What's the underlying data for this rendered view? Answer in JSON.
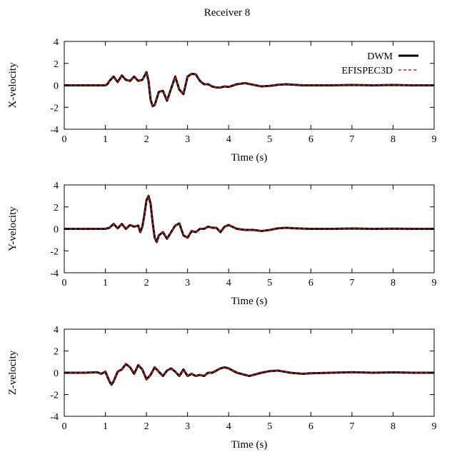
{
  "figure_title": "Receiver 8",
  "chart_data": [
    {
      "type": "line",
      "title": "",
      "xlabel": "Time (s)",
      "ylabel": "X-velocity",
      "xlim": [
        0,
        9
      ],
      "ylim": [
        -4,
        4
      ],
      "xticks": [
        0,
        1,
        2,
        3,
        4,
        5,
        6,
        7,
        8,
        9
      ],
      "yticks": [
        -4,
        -2,
        0,
        2,
        4
      ],
      "grid": false,
      "legend": "top-right",
      "x": [
        0,
        0.5,
        1.0,
        1.05,
        1.1,
        1.2,
        1.3,
        1.4,
        1.5,
        1.6,
        1.7,
        1.8,
        1.9,
        2.0,
        2.05,
        2.1,
        2.15,
        2.2,
        2.3,
        2.4,
        2.5,
        2.6,
        2.7,
        2.8,
        2.9,
        3.0,
        3.1,
        3.2,
        3.3,
        3.4,
        3.5,
        3.6,
        3.7,
        3.8,
        3.9,
        4.0,
        4.2,
        4.4,
        4.6,
        4.8,
        5.0,
        5.2,
        5.4,
        5.6,
        5.8,
        6.0,
        6.5,
        7.0,
        7.5,
        8.0,
        8.5,
        9.0
      ],
      "series": [
        {
          "name": "DWM",
          "color": "#000000",
          "style": "solid",
          "values": [
            0,
            0,
            0,
            0.1,
            0.4,
            0.8,
            0.3,
            0.9,
            0.5,
            0.4,
            0.8,
            0.4,
            0.5,
            1.2,
            0.4,
            -1.3,
            -1.9,
            -1.8,
            -0.6,
            -0.5,
            -1.4,
            -0.3,
            0.8,
            -0.4,
            -0.8,
            0.8,
            1.05,
            1.0,
            0.4,
            0.1,
            0.1,
            -0.1,
            -0.2,
            -0.2,
            -0.1,
            -0.15,
            0.1,
            0.2,
            0.05,
            -0.1,
            -0.05,
            0.05,
            0.1,
            0.05,
            0,
            0,
            0,
            0.03,
            0,
            0.03,
            0,
            0
          ]
        },
        {
          "name": "EFISPEC3D",
          "color": "#e8191a",
          "style": "dashed",
          "values": [
            0,
            0,
            0,
            0.1,
            0.4,
            0.8,
            0.3,
            0.9,
            0.5,
            0.4,
            0.8,
            0.4,
            0.5,
            1.2,
            0.4,
            -1.3,
            -1.9,
            -1.8,
            -0.6,
            -0.5,
            -1.4,
            -0.3,
            0.8,
            -0.4,
            -0.8,
            0.8,
            1.05,
            1.0,
            0.4,
            0.1,
            0.1,
            -0.1,
            -0.2,
            -0.2,
            -0.1,
            -0.15,
            0.1,
            0.2,
            0.05,
            -0.1,
            -0.05,
            0.05,
            0.1,
            0.05,
            0,
            0,
            0,
            0.03,
            0,
            0.03,
            0,
            0
          ]
        }
      ]
    },
    {
      "type": "line",
      "title": "",
      "xlabel": "Time (s)",
      "ylabel": "Y-velocity",
      "xlim": [
        0,
        9
      ],
      "ylim": [
        -4,
        4
      ],
      "xticks": [
        0,
        1,
        2,
        3,
        4,
        5,
        6,
        7,
        8,
        9
      ],
      "yticks": [
        -4,
        -2,
        0,
        2,
        4
      ],
      "grid": false,
      "x": [
        0,
        0.5,
        1.0,
        1.1,
        1.2,
        1.3,
        1.4,
        1.5,
        1.6,
        1.7,
        1.8,
        1.85,
        1.9,
        1.95,
        2.0,
        2.05,
        2.1,
        2.15,
        2.2,
        2.25,
        2.3,
        2.4,
        2.5,
        2.6,
        2.7,
        2.8,
        2.9,
        3.0,
        3.1,
        3.2,
        3.3,
        3.4,
        3.5,
        3.6,
        3.7,
        3.8,
        3.9,
        4.0,
        4.2,
        4.4,
        4.6,
        4.8,
        5.0,
        5.2,
        5.4,
        5.6,
        6.0,
        6.5,
        7.0,
        7.5,
        8.0,
        8.5,
        9.0
      ],
      "series": [
        {
          "name": "DWM",
          "color": "#000000",
          "style": "solid",
          "values": [
            0,
            0,
            0,
            0.1,
            0.45,
            0.05,
            0.45,
            0.0,
            0.35,
            0.2,
            0.3,
            -0.3,
            0.2,
            1.3,
            2.6,
            3.0,
            2.3,
            0.6,
            -0.8,
            -1.2,
            -0.6,
            -0.3,
            -0.9,
            -0.3,
            0.3,
            0.5,
            -0.6,
            -0.8,
            -0.2,
            -0.3,
            0.0,
            0.0,
            0.2,
            0.1,
            0.1,
            -0.3,
            0.2,
            0.35,
            0.0,
            -0.1,
            -0.1,
            -0.2,
            -0.1,
            0.05,
            0.1,
            0.05,
            0,
            0,
            0.03,
            0,
            0.02,
            0,
            0
          ]
        },
        {
          "name": "EFISPEC3D",
          "color": "#e8191a",
          "style": "dashed",
          "values": [
            0,
            0,
            0,
            0.1,
            0.45,
            0.05,
            0.45,
            0.0,
            0.35,
            0.2,
            0.3,
            -0.3,
            0.2,
            1.3,
            2.6,
            3.0,
            2.3,
            0.6,
            -0.8,
            -1.2,
            -0.6,
            -0.3,
            -0.9,
            -0.3,
            0.3,
            0.5,
            -0.6,
            -0.8,
            -0.2,
            -0.3,
            0.0,
            0.0,
            0.2,
            0.1,
            0.1,
            -0.3,
            0.2,
            0.35,
            0.0,
            -0.1,
            -0.1,
            -0.2,
            -0.1,
            0.05,
            0.1,
            0.05,
            0,
            0,
            0.03,
            0,
            0.02,
            0,
            0
          ]
        }
      ]
    },
    {
      "type": "line",
      "title": "",
      "xlabel": "Time (s)",
      "ylabel": "Z-velocity",
      "xlim": [
        0,
        9
      ],
      "ylim": [
        -4,
        4
      ],
      "xticks": [
        0,
        1,
        2,
        3,
        4,
        5,
        6,
        7,
        8,
        9
      ],
      "yticks": [
        -4,
        -2,
        0,
        2,
        4
      ],
      "grid": false,
      "x": [
        0,
        0.5,
        0.8,
        0.9,
        1.0,
        1.1,
        1.15,
        1.2,
        1.3,
        1.4,
        1.5,
        1.6,
        1.7,
        1.8,
        1.9,
        2.0,
        2.1,
        2.2,
        2.3,
        2.4,
        2.5,
        2.6,
        2.7,
        2.8,
        2.9,
        3.0,
        3.1,
        3.2,
        3.3,
        3.4,
        3.5,
        3.6,
        3.8,
        3.9,
        4.0,
        4.2,
        4.5,
        4.8,
        5.0,
        5.2,
        5.5,
        5.8,
        6.0,
        6.5,
        7.0,
        7.5,
        8.0,
        8.5,
        9.0
      ],
      "series": [
        {
          "name": "DWM",
          "color": "#000000",
          "style": "solid",
          "values": [
            0,
            0,
            0.05,
            -0.1,
            0.1,
            -0.8,
            -1.1,
            -0.8,
            0.1,
            0.3,
            0.8,
            0.5,
            -0.1,
            0.7,
            0.3,
            -0.6,
            -0.2,
            0.5,
            0.1,
            -0.3,
            0.2,
            0.4,
            0.1,
            -0.3,
            0.3,
            -0.3,
            -0.1,
            -0.3,
            -0.2,
            -0.3,
            0.0,
            0.0,
            0.4,
            0.5,
            0.4,
            0.0,
            -0.3,
            0.0,
            0.15,
            0.2,
            0.0,
            -0.1,
            -0.05,
            0,
            0.05,
            0,
            0.03,
            0,
            0
          ]
        },
        {
          "name": "EFISPEC3D",
          "color": "#e8191a",
          "style": "dashed",
          "values": [
            0,
            0,
            0.05,
            -0.1,
            0.1,
            -0.8,
            -1.1,
            -0.8,
            0.1,
            0.3,
            0.8,
            0.5,
            -0.1,
            0.7,
            0.3,
            -0.6,
            -0.2,
            0.5,
            0.1,
            -0.3,
            0.2,
            0.4,
            0.1,
            -0.3,
            0.3,
            -0.3,
            -0.1,
            -0.3,
            -0.2,
            -0.3,
            0.0,
            0.0,
            0.4,
            0.5,
            0.4,
            0.0,
            -0.3,
            0.0,
            0.15,
            0.2,
            0.0,
            -0.1,
            -0.05,
            0,
            0.05,
            0,
            0.03,
            0,
            0
          ]
        }
      ]
    }
  ]
}
